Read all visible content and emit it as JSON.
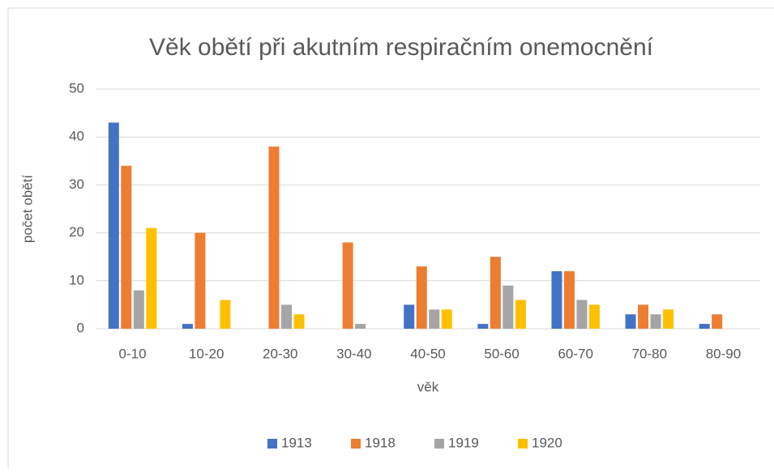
{
  "chart_data": {
    "type": "bar",
    "title": "Věk obětí při akutním respiračním onemocnění",
    "x_label": "věk",
    "y_label": "počet obětí",
    "categories": [
      "0-10",
      "10-20",
      "20-30",
      "30-40",
      "40-50",
      "50-60",
      "60-70",
      "70-80",
      "80-90"
    ],
    "series": [
      {
        "name": "1913",
        "color": "#4472c4",
        "values": [
          43,
          1,
          0,
          0,
          5,
          1,
          12,
          3,
          1
        ]
      },
      {
        "name": "1918",
        "color": "#ed7d31",
        "values": [
          34,
          20,
          38,
          18,
          13,
          15,
          12,
          5,
          3
        ]
      },
      {
        "name": "1919",
        "color": "#a5a5a5",
        "values": [
          8,
          0,
          5,
          1,
          4,
          9,
          6,
          3,
          0
        ]
      },
      {
        "name": "1920",
        "color": "#ffc000",
        "values": [
          21,
          6,
          3,
          0,
          4,
          6,
          5,
          4,
          0
        ]
      }
    ],
    "ylim": [
      0,
      50
    ],
    "yticks": [
      0,
      10,
      20,
      30,
      40,
      50
    ],
    "grid": true,
    "legend": "bottom"
  }
}
